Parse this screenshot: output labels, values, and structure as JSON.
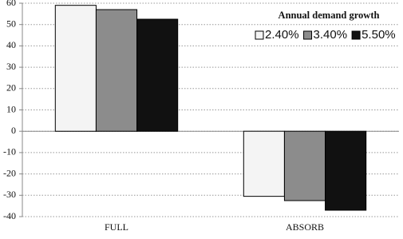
{
  "chart_data": {
    "type": "bar",
    "legend_title": "Annual demand growth",
    "categories": [
      "FULL",
      "ABSORB"
    ],
    "series": [
      {
        "name": "2.40%",
        "color": "#f4f4f4",
        "values": [
          59,
          -30.5
        ]
      },
      {
        "name": "3.40%",
        "color": "#8c8c8c",
        "values": [
          57,
          -32.5
        ]
      },
      {
        "name": "5.50%",
        "color": "#111111",
        "values": [
          52.5,
          -37
        ]
      }
    ],
    "ylim": [
      -40,
      60
    ],
    "yticks": [
      -40,
      -30,
      -20,
      -10,
      0,
      10,
      20,
      30,
      40,
      50,
      60
    ],
    "grid": true,
    "legend": "upper right"
  }
}
